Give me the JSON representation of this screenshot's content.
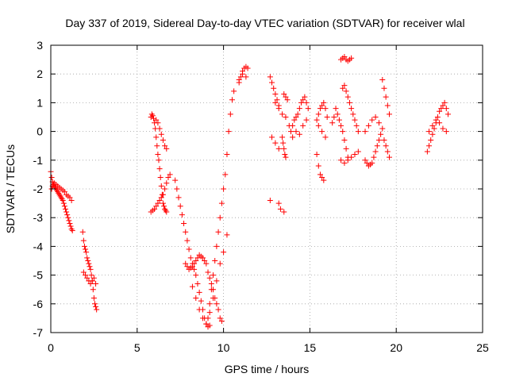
{
  "chart_data": {
    "type": "scatter",
    "title": "Day 337 of 2019, Sidereal Day-to-day VTEC variation (SDTVAR) for receiver wlal",
    "xlabel": "GPS time / hours",
    "ylabel": "SDTVAR / TECUs",
    "xlim": [
      0,
      25
    ],
    "ylim": [
      -7,
      3
    ],
    "xticks": [
      "0",
      "5",
      "10",
      "15",
      "20",
      "25"
    ],
    "yticks": [
      "-7",
      "-6",
      "-5",
      "-4",
      "-3",
      "-2",
      "-1",
      "0",
      "1",
      "2",
      "3"
    ],
    "grid": true,
    "legend": "none",
    "marker": "plus",
    "color": "#ff0000",
    "series": [
      {
        "x": [
          0.0,
          0.05,
          0.1,
          0.15,
          0.2,
          0.25,
          0.3,
          0.35,
          0.4,
          0.45,
          0.5,
          0.55,
          0.6,
          0.65,
          0.7,
          0.75,
          0.8,
          0.85,
          0.9,
          0.95,
          1.0,
          1.05,
          1.1,
          1.15,
          1.2,
          1.25,
          0.05,
          0.1,
          0.15,
          0.2,
          0.3,
          0.4,
          0.5,
          0.6,
          0.7,
          0.8,
          0.9,
          1.0,
          1.1,
          1.2,
          1.85,
          1.9,
          1.95,
          2.0,
          2.05,
          2.1,
          2.15,
          2.2,
          2.25,
          2.3,
          2.35,
          2.4,
          2.45,
          2.5,
          2.55,
          2.6,
          2.65,
          1.9,
          2.0,
          2.1,
          2.2,
          2.3,
          2.4,
          2.5,
          2.6,
          5.8,
          5.85,
          5.9,
          5.95,
          6.0,
          6.05,
          6.1,
          6.15,
          6.2,
          6.25,
          6.3,
          6.35,
          6.4,
          6.45,
          6.5,
          6.55,
          6.6,
          6.65,
          6.7,
          5.8,
          5.9,
          6.0,
          6.1,
          6.2,
          6.3,
          6.4,
          6.5,
          6.6,
          6.7,
          6.8,
          6.9,
          6.1,
          6.2,
          6.3,
          6.4,
          6.5,
          6.6,
          6.7,
          7.2,
          7.3,
          7.4,
          7.5,
          7.6,
          7.7,
          7.8,
          7.9,
          8.0,
          8.1,
          8.2,
          8.3,
          8.4,
          8.5,
          8.6,
          8.7,
          8.8,
          8.9,
          9.0,
          9.1,
          9.2,
          7.8,
          7.9,
          8.0,
          8.1,
          8.2,
          8.3,
          8.4,
          8.5,
          8.6,
          8.7,
          8.8,
          8.9,
          9.0,
          9.1,
          9.2,
          9.3,
          9.4,
          9.5,
          9.6,
          9.7,
          9.8,
          9.9,
          9.1,
          9.2,
          9.3,
          9.4,
          9.5,
          9.6,
          9.7,
          9.8,
          9.9,
          10.0,
          10.1,
          10.2,
          10.3,
          10.4,
          10.5,
          10.6,
          8.2,
          8.4,
          8.6,
          8.8,
          9.0,
          9.2,
          9.4,
          9.6,
          9.8,
          10.0,
          10.2,
          10.9,
          11.0,
          11.1,
          11.2,
          11.3,
          11.4,
          10.9,
          11.1,
          11.3,
          12.7,
          12.8,
          12.9,
          13.0,
          13.1,
          13.2,
          12.8,
          13.0,
          13.2,
          13.0,
          13.2,
          13.5,
          13.6,
          13.7,
          13.4,
          13.6,
          13.8,
          13.9,
          12.7,
          13.2,
          13.3,
          13.5,
          13.4,
          13.45,
          13.5,
          13.55,
          13.6,
          14.0,
          14.1,
          14.2,
          14.3,
          14.4,
          14.5,
          14.6,
          14.7,
          14.8,
          14.9,
          14.0,
          14.2,
          14.4,
          14.6,
          14.8,
          15.4,
          15.5,
          15.6,
          15.7,
          15.8,
          15.9,
          16.0,
          15.5,
          15.7,
          15.9,
          15.4,
          15.5,
          15.6,
          15.7,
          15.8,
          16.3,
          16.4,
          16.5,
          16.6,
          16.7,
          16.8,
          16.9,
          17.0,
          17.1,
          17.2,
          16.8,
          16.9,
          17.0,
          17.1,
          17.2,
          17.3,
          17.4,
          16.9,
          17.0,
          17.1,
          17.2,
          17.3,
          17.4,
          17.5,
          17.6,
          17.7,
          17.8,
          16.8,
          17.0,
          17.2,
          17.4,
          17.6,
          17.8,
          18.2,
          18.3,
          18.4,
          18.5,
          18.6,
          18.7,
          18.8,
          18.9,
          19.0,
          19.1,
          18.2,
          18.4,
          18.6,
          18.8,
          19.0,
          19.2,
          19.2,
          19.3,
          19.4,
          19.5,
          19.6,
          19.3,
          19.4,
          19.5,
          19.6,
          21.8,
          21.9,
          22.0,
          22.1,
          22.2,
          22.3,
          22.4,
          22.5,
          22.6,
          22.7,
          22.8,
          22.9,
          23.0,
          21.9,
          22.1,
          22.3,
          22.5,
          22.7,
          22.9
        ],
        "y": [
          -1.4,
          -1.6,
          -1.75,
          -1.85,
          -1.9,
          -1.95,
          -2.0,
          -2.05,
          -2.1,
          -2.15,
          -2.2,
          -2.25,
          -2.3,
          -2.35,
          -2.4,
          -2.5,
          -2.6,
          -2.7,
          -2.8,
          -2.9,
          -3.0,
          -3.1,
          -3.2,
          -3.3,
          -3.4,
          -3.45,
          -2.0,
          -1.9,
          -1.85,
          -1.8,
          -1.85,
          -1.9,
          -1.95,
          -2.0,
          -2.05,
          -2.1,
          -2.2,
          -2.25,
          -2.3,
          -2.4,
          -3.5,
          -3.8,
          -4.0,
          -4.1,
          -4.2,
          -4.4,
          -4.5,
          -4.6,
          -4.7,
          -4.8,
          -5.0,
          -5.2,
          -5.5,
          -5.8,
          -6.0,
          -6.1,
          -6.2,
          -4.9,
          -5.0,
          -5.1,
          -5.2,
          -5.3,
          -5.2,
          -5.1,
          -5.3,
          0.5,
          0.6,
          0.55,
          0.45,
          0.3,
          0.1,
          -0.2,
          -0.5,
          -0.8,
          -1.0,
          -1.3,
          -1.6,
          -1.9,
          -2.2,
          -2.5,
          -2.6,
          -2.7,
          -2.75,
          -2.8,
          -2.8,
          -2.75,
          -2.7,
          -2.6,
          -2.5,
          -2.4,
          -2.3,
          -2.2,
          -2.0,
          -1.8,
          -1.6,
          -1.5,
          0.4,
          0.3,
          0.1,
          -0.1,
          -0.3,
          -0.5,
          -0.6,
          -1.7,
          -2.0,
          -2.3,
          -2.6,
          -2.9,
          -3.2,
          -3.5,
          -3.8,
          -4.1,
          -4.4,
          -4.6,
          -4.8,
          -5.0,
          -5.3,
          -5.6,
          -5.9,
          -6.2,
          -6.5,
          -6.7,
          -6.8,
          -6.75,
          -4.6,
          -4.7,
          -4.8,
          -4.75,
          -4.7,
          -4.6,
          -4.5,
          -4.4,
          -4.3,
          -4.35,
          -4.4,
          -4.5,
          -4.6,
          -4.9,
          -5.1,
          -5.3,
          -5.5,
          -5.8,
          -6.0,
          -6.2,
          -6.5,
          -6.6,
          -6.5,
          -6.0,
          -5.5,
          -5.0,
          -4.5,
          -4.0,
          -3.5,
          -3.0,
          -2.5,
          -2.0,
          -1.5,
          -0.8,
          0.0,
          0.6,
          1.1,
          1.4,
          -5.4,
          -5.8,
          -6.2,
          -6.5,
          -6.7,
          -6.3,
          -5.8,
          -5.2,
          -4.6,
          -4.2,
          -3.6,
          1.7,
          1.9,
          2.1,
          2.2,
          2.25,
          2.2,
          1.8,
          2.0,
          1.9,
          1.9,
          1.7,
          1.5,
          1.3,
          1.1,
          0.9,
          -0.2,
          -0.4,
          -0.6,
          1.0,
          0.8,
          1.3,
          1.2,
          1.1,
          0.6,
          0.5,
          0.2,
          0.0,
          -2.4,
          -2.5,
          -2.7,
          -2.8,
          -0.2,
          -0.4,
          -0.6,
          -0.8,
          -0.9,
          0.2,
          0.4,
          0.5,
          0.6,
          0.8,
          1.0,
          1.1,
          1.2,
          1.0,
          0.8,
          -0.2,
          0.0,
          -0.1,
          0.2,
          0.4,
          0.4,
          0.6,
          0.8,
          0.9,
          1.0,
          0.8,
          0.5,
          0.2,
          0.0,
          -0.2,
          -0.8,
          -1.2,
          -1.5,
          -1.6,
          -1.7,
          0.3,
          0.5,
          0.8,
          0.6,
          0.4,
          0.2,
          0.0,
          -0.3,
          -0.6,
          -0.9,
          2.5,
          2.55,
          2.6,
          2.5,
          2.45,
          2.5,
          2.55,
          1.5,
          1.6,
          1.4,
          1.2,
          1.0,
          0.8,
          0.6,
          0.4,
          0.2,
          0.0,
          -1.0,
          -1.1,
          -1.0,
          -0.9,
          -0.8,
          -0.7,
          -1.0,
          -1.1,
          -1.2,
          -1.15,
          -1.1,
          -0.9,
          -0.7,
          -0.5,
          -0.3,
          -0.1,
          0.0,
          0.2,
          0.4,
          0.5,
          0.3,
          0.1,
          1.8,
          1.5,
          1.2,
          0.9,
          0.6,
          -0.3,
          -0.5,
          -0.7,
          -0.9,
          -0.7,
          -0.5,
          -0.3,
          -0.1,
          0.1,
          0.3,
          0.5,
          0.7,
          0.8,
          0.9,
          1.0,
          0.8,
          0.6,
          0.0,
          0.2,
          0.4,
          0.3,
          0.1,
          0.0
        ]
      }
    ]
  }
}
